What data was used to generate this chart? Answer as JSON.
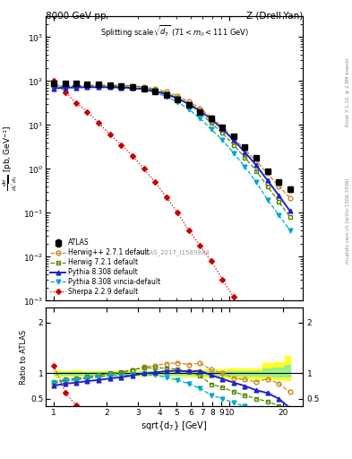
{
  "title_left": "8000 GeV pp",
  "title_right": "Z (Drell-Yan)",
  "watermark": "ATLAS_2017_I1589844",
  "rivet_text": "Rivet 3.1.10, ≥ 2.8M events",
  "arxiv_text": "mcplots.cern.ch [arXiv:1306.3436]",
  "atlas_x": [
    1.0,
    1.16,
    1.34,
    1.55,
    1.8,
    2.09,
    2.42,
    2.8,
    3.25,
    3.76,
    4.36,
    5.05,
    5.85,
    6.78,
    7.85,
    9.09,
    10.53,
    12.2,
    14.14,
    16.38,
    18.98,
    22.0
  ],
  "atlas_y": [
    90.0,
    88.0,
    87.0,
    85.0,
    83.0,
    80.0,
    77.0,
    72.0,
    65.0,
    57.0,
    48.0,
    38.0,
    29.0,
    20.0,
    14.0,
    9.0,
    5.5,
    3.2,
    1.8,
    0.9,
    0.5,
    0.35
  ],
  "atlas_yerr_lo": [
    5.0,
    4.5,
    4.5,
    4.0,
    4.0,
    4.0,
    3.8,
    3.5,
    3.2,
    2.8,
    2.5,
    2.0,
    1.8,
    1.4,
    1.0,
    0.7,
    0.5,
    0.3,
    0.18,
    0.09,
    0.06,
    0.045
  ],
  "atlas_yerr_hi": [
    5.0,
    4.5,
    4.5,
    4.0,
    4.0,
    4.0,
    3.8,
    3.5,
    3.2,
    2.8,
    2.5,
    2.0,
    1.8,
    1.4,
    1.0,
    0.7,
    0.5,
    0.3,
    0.18,
    0.09,
    0.06,
    0.045
  ],
  "herwig271_x": [
    1.0,
    1.16,
    1.34,
    1.55,
    1.8,
    2.09,
    2.42,
    2.8,
    3.25,
    3.76,
    4.36,
    5.05,
    5.85,
    6.78,
    7.85,
    9.09,
    10.53,
    12.2,
    14.14,
    16.38,
    18.98,
    22.0
  ],
  "herwig271_y": [
    72.0,
    75.0,
    76.0,
    77.0,
    78.0,
    78.0,
    78.0,
    77.0,
    73.0,
    66.0,
    57.0,
    46.0,
    34.0,
    24.0,
    15.0,
    9.0,
    5.0,
    2.8,
    1.5,
    0.8,
    0.4,
    0.22
  ],
  "herwig721_x": [
    1.0,
    1.16,
    1.34,
    1.55,
    1.8,
    2.09,
    2.42,
    2.8,
    3.25,
    3.76,
    4.36,
    5.05,
    5.85,
    6.78,
    7.85,
    9.09,
    10.53,
    12.2,
    14.14,
    16.38,
    18.98,
    22.0
  ],
  "herwig721_y": [
    75.0,
    77.0,
    78.0,
    79.0,
    80.0,
    80.0,
    79.0,
    77.0,
    72.0,
    63.0,
    53.0,
    41.0,
    30.0,
    19.0,
    11.0,
    6.5,
    3.5,
    1.8,
    0.9,
    0.4,
    0.18,
    0.08
  ],
  "pythia8_x": [
    1.0,
    1.16,
    1.34,
    1.55,
    1.8,
    2.09,
    2.42,
    2.8,
    3.25,
    3.76,
    4.36,
    5.05,
    5.85,
    6.78,
    7.85,
    9.09,
    10.53,
    12.2,
    14.14,
    16.38,
    18.98,
    22.0
  ],
  "pythia8_y": [
    68.0,
    70.0,
    71.0,
    72.0,
    72.0,
    72.0,
    71.0,
    69.0,
    65.0,
    58.0,
    50.0,
    40.0,
    30.0,
    21.0,
    13.5,
    8.0,
    4.5,
    2.4,
    1.2,
    0.55,
    0.25,
    0.11
  ],
  "pythia8v_x": [
    1.0,
    1.16,
    1.34,
    1.55,
    1.8,
    2.09,
    2.42,
    2.8,
    3.25,
    3.76,
    4.36,
    5.05,
    5.85,
    6.78,
    7.85,
    9.09,
    10.53,
    12.2,
    14.14,
    16.38,
    18.98,
    22.0
  ],
  "pythia8v_y": [
    73.0,
    75.0,
    76.0,
    77.0,
    77.0,
    76.0,
    74.0,
    70.0,
    64.0,
    55.0,
    44.0,
    33.0,
    23.0,
    14.0,
    8.0,
    4.5,
    2.3,
    1.1,
    0.5,
    0.2,
    0.09,
    0.04
  ],
  "sherpa_x": [
    1.0,
    1.16,
    1.34,
    1.55,
    1.8,
    2.09,
    2.42,
    2.8,
    3.25,
    3.76,
    4.36,
    5.05,
    5.85,
    6.78,
    7.85,
    9.09,
    10.53,
    12.2,
    14.14,
    16.38,
    18.98,
    22.0
  ],
  "sherpa_y": [
    103.0,
    55.0,
    32.0,
    20.0,
    11.0,
    6.0,
    3.5,
    2.0,
    1.0,
    0.5,
    0.23,
    0.1,
    0.04,
    0.018,
    0.008,
    0.003,
    0.0012,
    0.0005,
    0.0002,
    8e-05,
    3e-05,
    1.2e-05
  ],
  "color_herwig271": "#cc8822",
  "color_herwig721": "#558800",
  "color_pythia8": "#2222cc",
  "color_pythia8v": "#00aacc",
  "color_sherpa": "#cc0000",
  "color_atlas": "#000000",
  "ylim_main": [
    0.001,
    3000.0
  ],
  "xlim": [
    0.9,
    26.0
  ],
  "ratio_ylim": [
    0.35,
    2.3
  ],
  "band_yellow_lo": [
    0.944,
    0.949,
    0.948,
    0.953,
    0.952,
    0.95,
    0.951,
    0.951,
    0.951,
    0.951,
    0.948,
    0.947,
    0.938,
    0.93,
    0.929,
    0.922,
    0.909,
    0.906,
    0.9,
    0.9,
    0.88,
    0.871
  ],
  "band_yellow_hi": [
    1.056,
    1.051,
    1.052,
    1.047,
    1.048,
    1.05,
    1.049,
    1.049,
    1.049,
    1.049,
    1.052,
    1.053,
    1.062,
    1.07,
    1.071,
    1.078,
    1.091,
    1.094,
    1.1,
    1.2,
    1.22,
    1.35
  ],
  "band_green_lo": [
    0.972,
    0.975,
    0.974,
    0.976,
    0.976,
    0.975,
    0.975,
    0.975,
    0.975,
    0.975,
    0.974,
    0.974,
    0.969,
    0.965,
    0.964,
    0.961,
    0.954,
    0.953,
    0.95,
    0.95,
    0.94,
    0.935
  ],
  "band_green_hi": [
    1.028,
    1.025,
    1.026,
    1.024,
    1.024,
    1.025,
    1.025,
    1.025,
    1.025,
    1.025,
    1.026,
    1.026,
    1.031,
    1.035,
    1.036,
    1.039,
    1.046,
    1.047,
    1.05,
    1.1,
    1.11,
    1.175
  ]
}
